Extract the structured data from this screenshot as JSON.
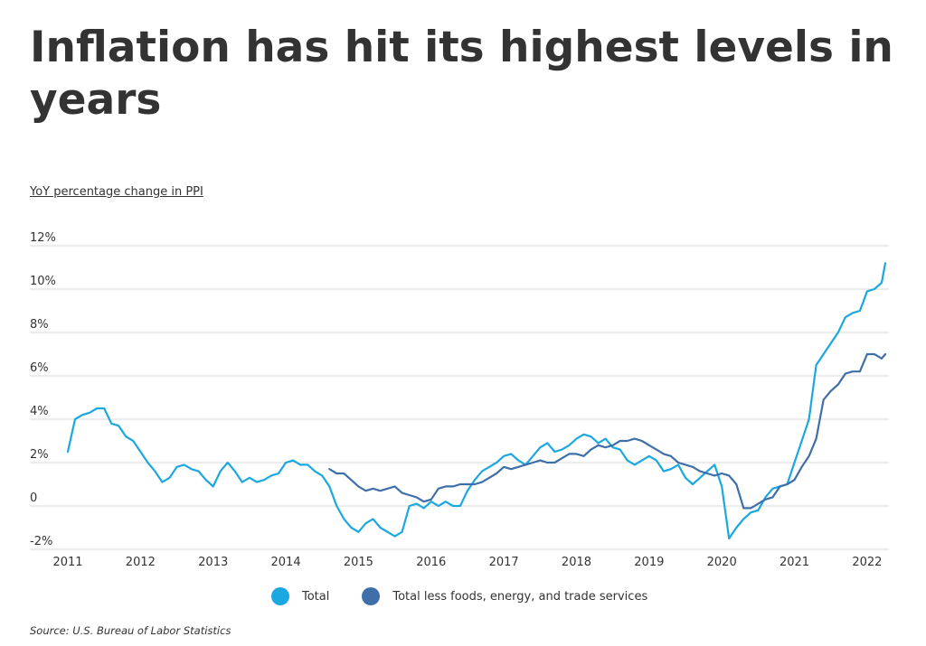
{
  "title": "Inflation has hit its highest levels in years",
  "subtitle": "YoY percentage change in PPI",
  "source": "Source:  U.S. Bureau of Labor Statistics",
  "colors": {
    "total": "#1ba8e0",
    "core": "#3e6fa8",
    "grid": "#d9d9d9",
    "text": "#333333"
  },
  "legend": [
    {
      "label": "Total",
      "color": "#1ba8e0"
    },
    {
      "label": "Total less foods, energy, and trade services",
      "color": "#3e6fa8"
    }
  ],
  "chart_data": {
    "type": "line",
    "title": "Inflation has hit its highest levels in years",
    "ylabel": "YoY percentage change in PPI",
    "xlabel": "",
    "ylim": [
      -2,
      12
    ],
    "yticks": [
      -2,
      0,
      2,
      4,
      6,
      8,
      10,
      12
    ],
    "ytick_labels": [
      "-2%",
      "0",
      "2%",
      "4%",
      "6%",
      "8%",
      "10%",
      "12%"
    ],
    "xlim": [
      2011,
      2022.3
    ],
    "xticks": [
      2011,
      2012,
      2013,
      2014,
      2015,
      2016,
      2017,
      2018,
      2019,
      2020,
      2021,
      2022
    ],
    "xtick_labels": [
      "2011",
      "2012",
      "2013",
      "2014",
      "2015",
      "2016",
      "2017",
      "2018",
      "2019",
      "2020",
      "2021",
      "2022"
    ],
    "grid": "horizontal",
    "legend_position": "bottom",
    "series": [
      {
        "name": "Total",
        "x": [
          2011.0,
          2011.1,
          2011.2,
          2011.3,
          2011.4,
          2011.5,
          2011.6,
          2011.7,
          2011.8,
          2011.9,
          2012.0,
          2012.1,
          2012.2,
          2012.3,
          2012.4,
          2012.5,
          2012.6,
          2012.7,
          2012.8,
          2012.9,
          2013.0,
          2013.1,
          2013.2,
          2013.3,
          2013.4,
          2013.5,
          2013.6,
          2013.7,
          2013.8,
          2013.9,
          2014.0,
          2014.1,
          2014.2,
          2014.3,
          2014.4,
          2014.5,
          2014.6,
          2014.7,
          2014.8,
          2014.9,
          2015.0,
          2015.1,
          2015.2,
          2015.3,
          2015.4,
          2015.5,
          2015.6,
          2015.7,
          2015.8,
          2015.9,
          2016.0,
          2016.1,
          2016.2,
          2016.3,
          2016.4,
          2016.5,
          2016.6,
          2016.7,
          2016.8,
          2016.9,
          2017.0,
          2017.1,
          2017.2,
          2017.3,
          2017.4,
          2017.5,
          2017.6,
          2017.7,
          2017.8,
          2017.9,
          2018.0,
          2018.1,
          2018.2,
          2018.3,
          2018.4,
          2018.5,
          2018.6,
          2018.7,
          2018.8,
          2018.9,
          2019.0,
          2019.1,
          2019.2,
          2019.3,
          2019.4,
          2019.5,
          2019.6,
          2019.7,
          2019.8,
          2019.9,
          2020.0,
          2020.1,
          2020.2,
          2020.3,
          2020.4,
          2020.5,
          2020.6,
          2020.7,
          2020.8,
          2020.9,
          2021.0,
          2021.1,
          2021.2,
          2021.3,
          2021.4,
          2021.5,
          2021.6,
          2021.7,
          2021.8,
          2021.9,
          2022.0,
          2022.1,
          2022.2,
          2022.25
        ],
        "y": [
          2.5,
          4.0,
          4.2,
          4.3,
          4.5,
          4.5,
          3.8,
          3.7,
          3.2,
          3.0,
          2.5,
          2.0,
          1.6,
          1.1,
          1.3,
          1.8,
          1.9,
          1.7,
          1.6,
          1.2,
          0.9,
          1.6,
          2.0,
          1.6,
          1.1,
          1.3,
          1.1,
          1.2,
          1.4,
          1.5,
          2.0,
          2.1,
          1.9,
          1.9,
          1.6,
          1.4,
          0.9,
          0.0,
          -0.6,
          -1.0,
          -1.2,
          -0.8,
          -0.6,
          -1.0,
          -1.2,
          -1.4,
          -1.2,
          0.0,
          0.1,
          -0.1,
          0.2,
          0.0,
          0.2,
          0.0,
          0.0,
          0.7,
          1.2,
          1.6,
          1.8,
          2.0,
          2.3,
          2.4,
          2.1,
          1.9,
          2.3,
          2.7,
          2.9,
          2.5,
          2.6,
          2.8,
          3.1,
          3.3,
          3.2,
          2.9,
          3.1,
          2.7,
          2.6,
          2.1,
          1.9,
          2.1,
          2.3,
          2.1,
          1.6,
          1.7,
          1.9,
          1.3,
          1.0,
          1.3,
          1.6,
          1.9,
          0.9,
          -1.5,
          -1.0,
          -0.6,
          -0.3,
          -0.2,
          0.4,
          0.8,
          0.9,
          1.0,
          2.0,
          3.0,
          4.0,
          6.5,
          7.0,
          7.5,
          8.0,
          8.7,
          8.9,
          9.0,
          9.9,
          10.0,
          10.3,
          11.2
        ]
      },
      {
        "name": "Total less foods, energy, and trade services",
        "x": [
          2014.6,
          2014.7,
          2014.8,
          2014.9,
          2015.0,
          2015.1,
          2015.2,
          2015.3,
          2015.4,
          2015.5,
          2015.6,
          2015.7,
          2015.8,
          2015.9,
          2016.0,
          2016.1,
          2016.2,
          2016.3,
          2016.4,
          2016.5,
          2016.6,
          2016.7,
          2016.8,
          2016.9,
          2017.0,
          2017.1,
          2017.2,
          2017.3,
          2017.4,
          2017.5,
          2017.6,
          2017.7,
          2017.8,
          2017.9,
          2018.0,
          2018.1,
          2018.2,
          2018.3,
          2018.4,
          2018.5,
          2018.6,
          2018.7,
          2018.8,
          2018.9,
          2019.0,
          2019.1,
          2019.2,
          2019.3,
          2019.4,
          2019.5,
          2019.6,
          2019.7,
          2019.8,
          2019.9,
          2020.0,
          2020.1,
          2020.2,
          2020.3,
          2020.4,
          2020.5,
          2020.6,
          2020.7,
          2020.8,
          2020.9,
          2021.0,
          2021.1,
          2021.2,
          2021.3,
          2021.4,
          2021.5,
          2021.6,
          2021.7,
          2021.8,
          2021.9,
          2022.0,
          2022.1,
          2022.2,
          2022.25
        ],
        "y": [
          1.7,
          1.5,
          1.5,
          1.2,
          0.9,
          0.7,
          0.8,
          0.7,
          0.8,
          0.9,
          0.6,
          0.5,
          0.4,
          0.2,
          0.3,
          0.8,
          0.9,
          0.9,
          1.0,
          1.0,
          1.0,
          1.1,
          1.3,
          1.5,
          1.8,
          1.7,
          1.8,
          1.9,
          2.0,
          2.1,
          2.0,
          2.0,
          2.2,
          2.4,
          2.4,
          2.3,
          2.6,
          2.8,
          2.7,
          2.8,
          3.0,
          3.0,
          3.1,
          3.0,
          2.8,
          2.6,
          2.4,
          2.3,
          2.0,
          1.9,
          1.8,
          1.6,
          1.5,
          1.4,
          1.5,
          1.4,
          1.0,
          -0.1,
          -0.1,
          0.1,
          0.3,
          0.4,
          0.9,
          1.0,
          1.2,
          1.8,
          2.3,
          3.1,
          4.9,
          5.3,
          5.6,
          6.1,
          6.2,
          6.2,
          7.0,
          7.0,
          6.8,
          7.0
        ]
      }
    ]
  }
}
